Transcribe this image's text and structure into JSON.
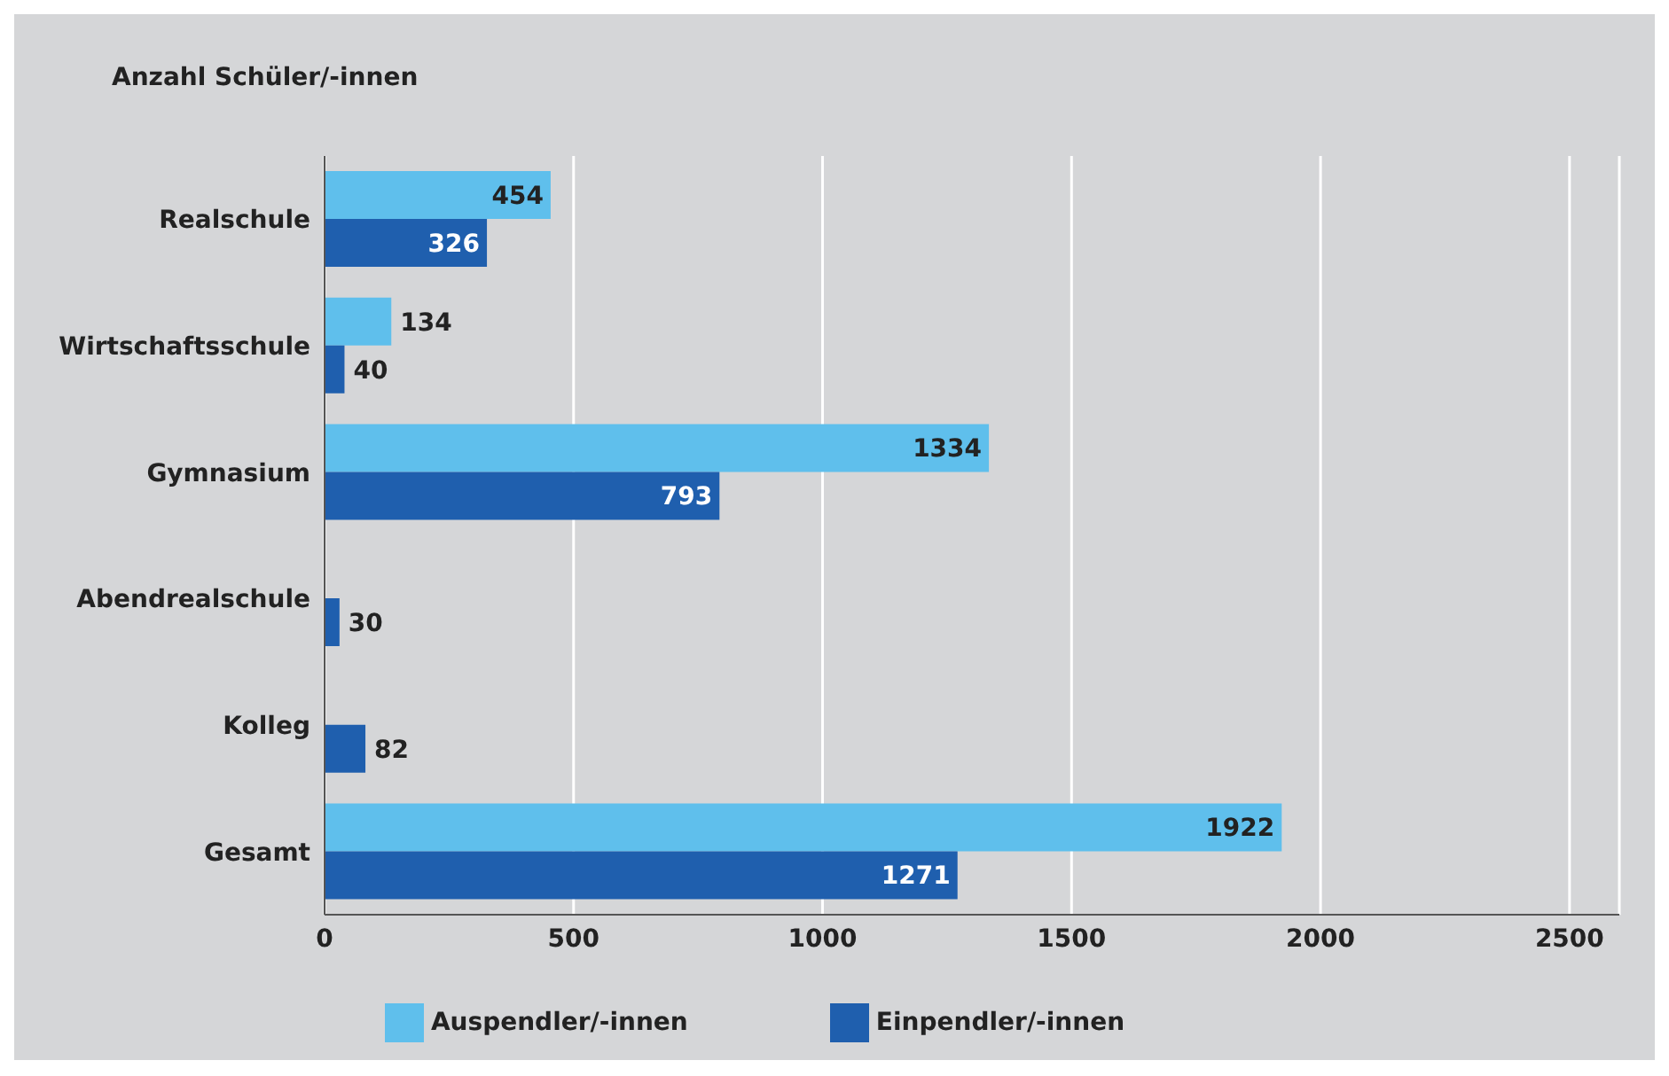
{
  "chart_data": {
    "type": "bar",
    "orientation": "horizontal",
    "ylabel": "Anzahl Schüler/-innen",
    "categories": [
      "Realschule",
      "Wirtschaftsschule",
      "Gymnasium",
      "Abendrealschule",
      "Kolleg",
      "Gesamt"
    ],
    "series": [
      {
        "name": "Auspendler/-innen",
        "color": "#5fbfec",
        "values": [
          454,
          134,
          1334,
          null,
          null,
          1922
        ]
      },
      {
        "name": "Einpendler/-innen",
        "color": "#1f5fae",
        "values": [
          326,
          40,
          793,
          30,
          82,
          1271
        ]
      }
    ],
    "xlim": [
      0,
      2600
    ],
    "xticks": [
      0,
      500,
      1000,
      1500,
      2000,
      2500
    ],
    "grid": "x",
    "legend": "bottom",
    "data_labels": true
  }
}
